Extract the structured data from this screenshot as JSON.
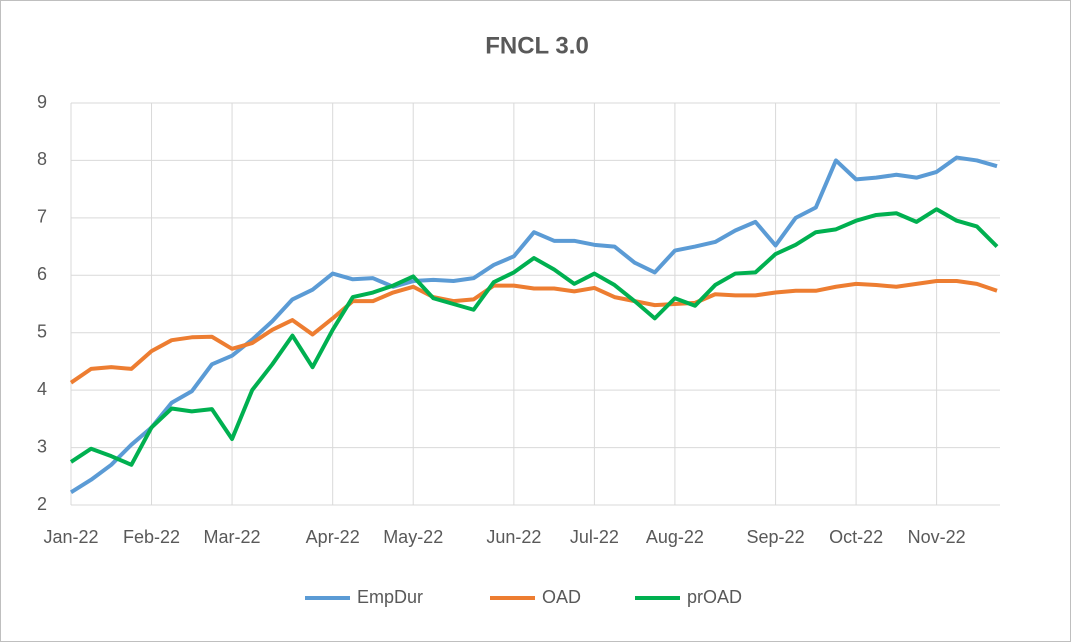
{
  "chart_data": {
    "type": "line",
    "title": "FNCL 3.0",
    "categories": [
      "Jan-22",
      null,
      null,
      null,
      "Feb-22",
      null,
      null,
      null,
      "Mar-22",
      null,
      null,
      null,
      null,
      "Apr-22",
      null,
      null,
      null,
      "May-22",
      null,
      null,
      null,
      null,
      "Jun-22",
      null,
      null,
      null,
      "Jul-22",
      null,
      null,
      null,
      "Aug-22",
      null,
      null,
      null,
      null,
      "Sep-22",
      null,
      null,
      null,
      "Oct-22",
      null,
      null,
      null,
      "Nov-22",
      null,
      null,
      null
    ],
    "series": [
      {
        "name": "EmpDur",
        "color": "#5b9bd5",
        "values": [
          2.22,
          2.44,
          2.7,
          3.05,
          3.35,
          3.78,
          3.98,
          4.45,
          4.6,
          4.88,
          5.2,
          5.58,
          5.75,
          6.03,
          5.93,
          5.95,
          5.8,
          5.9,
          5.92,
          5.9,
          5.95,
          6.18,
          6.33,
          6.75,
          6.6,
          6.6,
          6.53,
          6.5,
          6.22,
          6.05,
          6.43,
          6.5,
          6.58,
          6.78,
          6.93,
          6.52,
          7.0,
          7.18,
          8.0,
          7.67,
          7.7,
          7.75,
          7.7,
          7.8,
          8.05,
          8.0,
          7.9
        ]
      },
      {
        "name": "OAD",
        "color": "#ed7d31",
        "values": [
          4.13,
          4.37,
          4.4,
          4.37,
          4.68,
          4.87,
          4.92,
          4.93,
          4.72,
          4.82,
          5.05,
          5.22,
          4.97,
          5.25,
          5.55,
          5.55,
          5.7,
          5.8,
          5.62,
          5.55,
          5.58,
          5.82,
          5.82,
          5.77,
          5.77,
          5.72,
          5.78,
          5.62,
          5.55,
          5.48,
          5.5,
          5.52,
          5.67,
          5.65,
          5.65,
          5.7,
          5.73,
          5.73,
          5.8,
          5.85,
          5.83,
          5.8,
          5.85,
          5.9,
          5.9,
          5.85,
          5.73
        ]
      },
      {
        "name": "prOAD",
        "color": "#00b050",
        "values": [
          2.75,
          2.98,
          2.85,
          2.7,
          3.35,
          3.68,
          3.63,
          3.67,
          3.15,
          4.0,
          4.45,
          4.95,
          4.4,
          5.05,
          5.62,
          5.7,
          5.82,
          5.98,
          5.6,
          5.5,
          5.4,
          5.88,
          6.05,
          6.3,
          6.1,
          5.85,
          6.03,
          5.83,
          5.55,
          5.25,
          5.6,
          5.47,
          5.83,
          6.03,
          6.05,
          6.37,
          6.53,
          6.75,
          6.8,
          6.95,
          7.05,
          7.08,
          6.93,
          7.15,
          6.95,
          6.85,
          6.5
        ]
      }
    ],
    "ylim": [
      2,
      9
    ],
    "yticks": [
      2,
      3,
      4,
      5,
      6,
      7,
      8,
      9
    ],
    "grid": true,
    "legend": "bottom"
  }
}
